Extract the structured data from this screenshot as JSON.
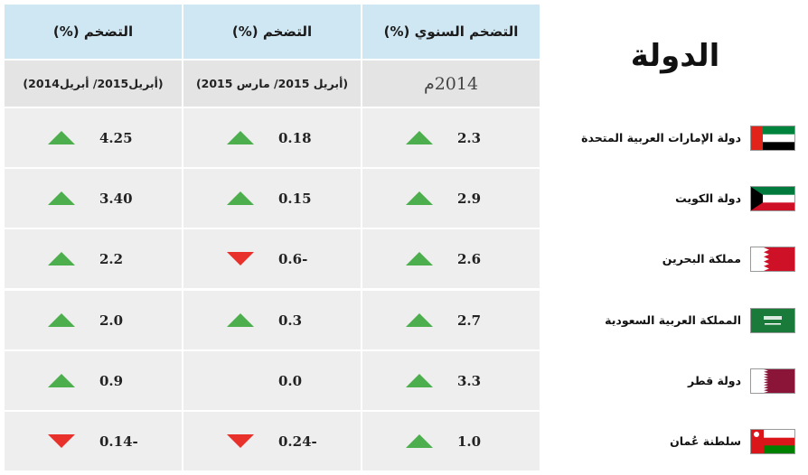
{
  "header": {
    "country": "الدولة",
    "columns": [
      {
        "title": "التضخم السنوي (%)",
        "period": "2014م"
      },
      {
        "title": "التضخم (%)",
        "period": "(أبريل 2015/ مارس 2015)"
      },
      {
        "title": "التضخم (%)",
        "period": "(أبريل2015/ أبريل2014)"
      }
    ]
  },
  "rows": [
    {
      "country": "دولة الإمارات العربية المتحدة",
      "cells": [
        {
          "value": "2.3",
          "trend": "up"
        },
        {
          "value": "0.18",
          "trend": "up"
        },
        {
          "value": "4.25",
          "trend": "up"
        }
      ]
    },
    {
      "country": "دولة الكويت",
      "cells": [
        {
          "value": "2.9",
          "trend": "up"
        },
        {
          "value": "0.15",
          "trend": "up"
        },
        {
          "value": "3.40",
          "trend": "up"
        }
      ]
    },
    {
      "country": "مملكة البحرين",
      "cells": [
        {
          "value": "2.6",
          "trend": "up"
        },
        {
          "value": "0.6-",
          "trend": "down"
        },
        {
          "value": "2.2",
          "trend": "up"
        }
      ]
    },
    {
      "country": "المملكة العربية السعودية",
      "cells": [
        {
          "value": "2.7",
          "trend": "up"
        },
        {
          "value": "0.3",
          "trend": "up"
        },
        {
          "value": "2.0",
          "trend": "up"
        }
      ]
    },
    {
      "country": "دولة قطر",
      "cells": [
        {
          "value": "3.3",
          "trend": "up"
        },
        {
          "value": "0.0"
        },
        {
          "value": "0.9",
          "trend": "up"
        }
      ]
    },
    {
      "country": "سلطنة عُمان",
      "cells": [
        {
          "value": "1.0",
          "trend": "up"
        },
        {
          "value": "0.24-",
          "trend": "down"
        },
        {
          "value": "0.14-",
          "trend": "down"
        }
      ]
    }
  ]
}
